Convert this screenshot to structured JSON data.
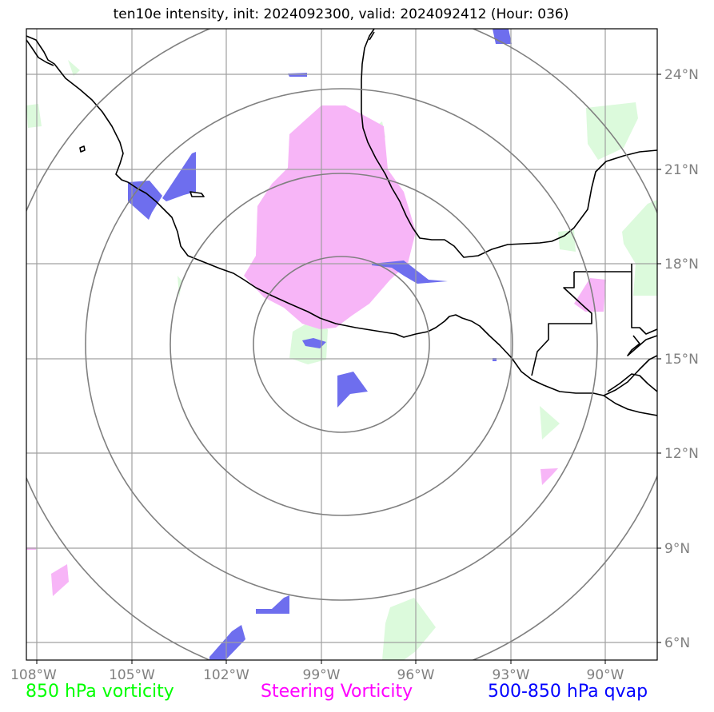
{
  "title": "ten10e intensity, init: 2024092300, valid: 2024092412 (Hour: 036)",
  "lon_labels": [
    "108°W",
    "105°W",
    "102°W",
    "99°W",
    "96°W",
    "93°W",
    "90°W"
  ],
  "lat_labels": [
    "24°N",
    "21°N",
    "18°N",
    "15°N",
    "12°N",
    "9°N",
    "6°N"
  ],
  "legend": [
    {
      "label": "850 hPa vorticity",
      "color": "#00ff00"
    },
    {
      "label": "Steering Vorticity",
      "color": "#ff00ff"
    },
    {
      "label": "500-850 hPa qvap",
      "color": "#0000ff"
    }
  ],
  "colors": {
    "vorticity_fill": "#dcfadc",
    "steering_fill": "#f7b5f7",
    "qvap_fill": "#6e6eee",
    "grid": "#a0a0a0",
    "range_ring": "#808080",
    "coastline": "#000000"
  }
}
